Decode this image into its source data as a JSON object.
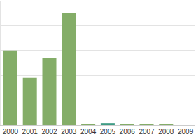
{
  "chart_data": {
    "type": "bar",
    "categories": [
      "2000",
      "2001",
      "2002",
      "2003",
      "2004",
      "2005",
      "2006",
      "2007",
      "2008",
      "2009"
    ],
    "values": [
      3.0,
      1.9,
      2.7,
      4.5,
      0.03,
      0.08,
      0.05,
      0.05,
      0.03,
      0
    ],
    "colors": [
      "#84ad68",
      "#84ad68",
      "#84ad68",
      "#84ad68",
      "#84ad68",
      "#3e9b84",
      "#84ad68",
      "#84ad68",
      "#84ad68",
      "#84ad68"
    ],
    "ylim": [
      0,
      5
    ],
    "yticks": [
      0,
      1,
      2,
      3,
      4,
      5
    ],
    "grid": true,
    "tick_labels": "x"
  }
}
